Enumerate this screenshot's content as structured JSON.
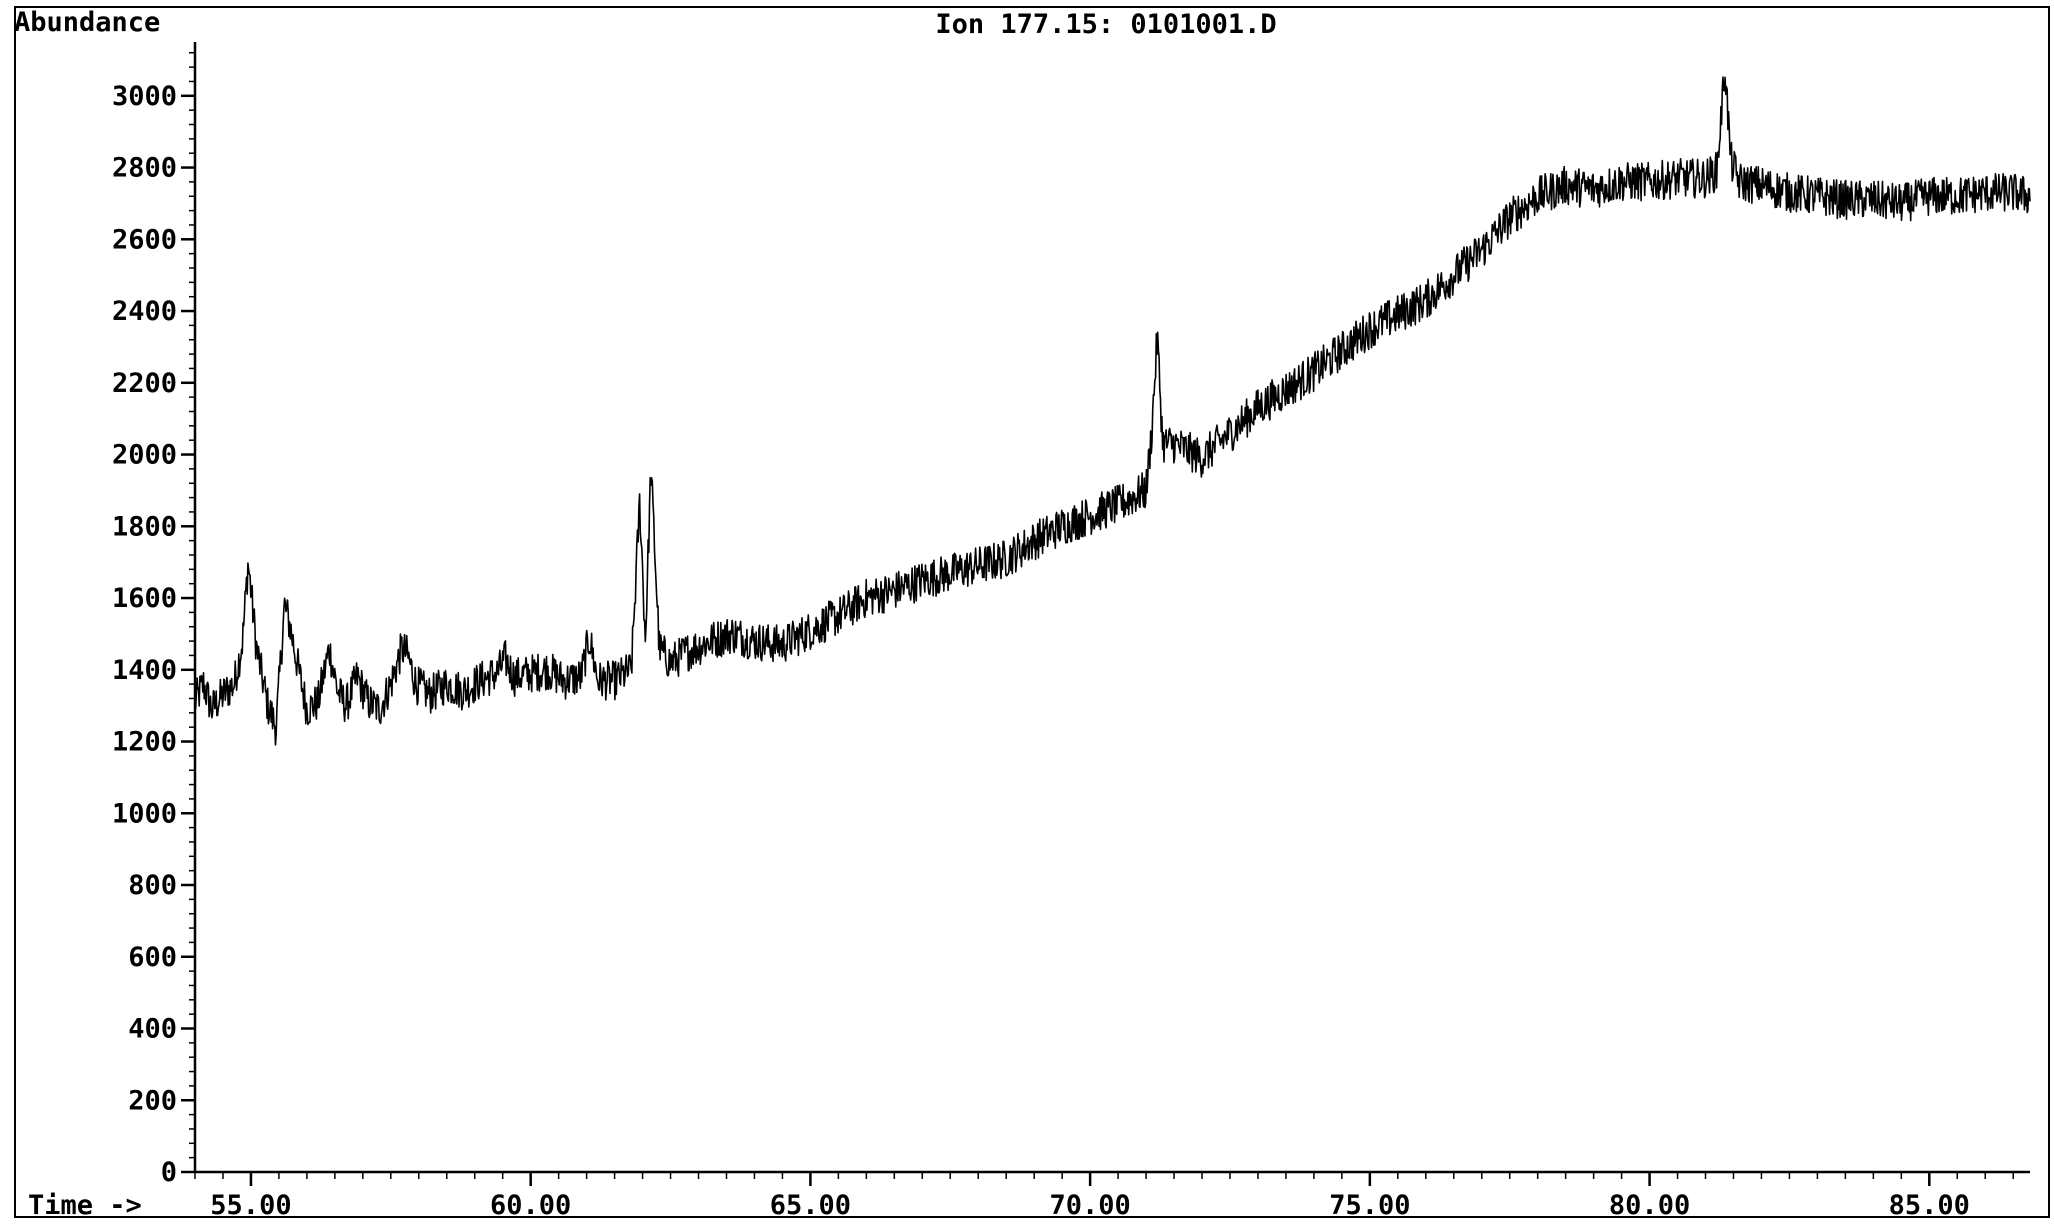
{
  "chart_data": {
    "type": "line",
    "title": "Ion 177.15: 0101001.D",
    "ylabel": "Abundance",
    "xlabel": "Time ->",
    "xlim": [
      54.0,
      86.8
    ],
    "ylim": [
      0,
      3150
    ],
    "x_ticks": [
      55,
      60,
      65,
      70,
      75,
      80,
      85
    ],
    "x_tick_labels": [
      "55.00",
      "60.00",
      "65.00",
      "70.00",
      "75.00",
      "80.00",
      "85.00"
    ],
    "y_ticks": [
      0,
      200,
      400,
      600,
      800,
      1000,
      1200,
      1400,
      1600,
      1800,
      2000,
      2200,
      2400,
      2600,
      2800,
      3000
    ],
    "y_tick_labels": [
      "0",
      "200",
      "400",
      "600",
      "800",
      "1000",
      "1200",
      "1400",
      "1600",
      "1800",
      "2000",
      "2200",
      "2400",
      "2600",
      "2800",
      "3000"
    ],
    "grid": false,
    "series": [
      {
        "color": "#000000",
        "x": [
          54.0,
          54.15,
          54.3,
          54.5,
          54.7,
          54.85,
          54.95,
          55.1,
          55.3,
          55.45,
          55.6,
          55.7,
          55.85,
          56.0,
          56.2,
          56.4,
          56.55,
          56.7,
          56.9,
          57.1,
          57.3,
          57.5,
          57.7,
          57.8,
          57.95,
          58.2,
          58.5,
          58.8,
          59.1,
          59.4,
          59.55,
          59.7,
          60.0,
          60.3,
          60.6,
          60.9,
          61.05,
          61.2,
          61.5,
          61.8,
          61.95,
          62.05,
          62.15,
          62.3,
          62.5,
          62.8,
          63.2,
          63.6,
          64.0,
          64.5,
          65.0,
          65.5,
          66.0,
          66.5,
          67.0,
          67.5,
          68.0,
          68.5,
          69.0,
          69.5,
          70.0,
          70.5,
          71.0,
          71.1,
          71.2,
          71.3,
          71.5,
          72.0,
          72.5,
          73.0,
          73.5,
          74.0,
          74.5,
          75.0,
          75.5,
          76.0,
          76.5,
          77.0,
          77.5,
          78.0,
          78.5,
          79.0,
          79.5,
          80.0,
          80.5,
          81.0,
          81.2,
          81.35,
          81.45,
          81.6,
          82.0,
          82.5,
          83.0,
          83.5,
          84.0,
          84.5,
          85.0,
          85.5,
          86.0,
          86.5,
          86.8
        ],
        "y": [
          1310,
          1360,
          1290,
          1330,
          1360,
          1480,
          1700,
          1460,
          1300,
          1240,
          1580,
          1520,
          1400,
          1290,
          1310,
          1460,
          1340,
          1300,
          1380,
          1310,
          1290,
          1360,
          1460,
          1440,
          1360,
          1330,
          1360,
          1340,
          1370,
          1390,
          1430,
          1380,
          1390,
          1400,
          1370,
          1380,
          1490,
          1370,
          1370,
          1400,
          1870,
          1480,
          1960,
          1460,
          1420,
          1450,
          1480,
          1500,
          1480,
          1470,
          1510,
          1550,
          1600,
          1620,
          1650,
          1670,
          1690,
          1710,
          1760,
          1800,
          1830,
          1860,
          1900,
          2060,
          2330,
          2030,
          2030,
          1990,
          2060,
          2130,
          2180,
          2230,
          2290,
          2350,
          2390,
          2430,
          2500,
          2570,
          2660,
          2720,
          2750,
          2740,
          2760,
          2760,
          2770,
          2770,
          2790,
          3080,
          2820,
          2760,
          2750,
          2730,
          2720,
          2710,
          2710,
          2700,
          2720,
          2720,
          2730,
          2730,
          2720
        ]
      }
    ]
  }
}
